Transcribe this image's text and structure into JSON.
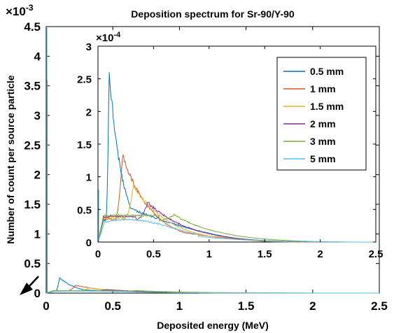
{
  "chart_data": {
    "type": "line",
    "title": "Deposition spectrum for Sr-90/Y-90",
    "xlabel": "Deposited energy (MeV)",
    "ylabel": "Number of count per source particle",
    "xlim": [
      0,
      2.5
    ],
    "ylim": [
      0,
      0.0045
    ],
    "exponent_label": "×10",
    "exponent_power": "-3",
    "xticks": [
      "0",
      "0.5",
      "1",
      "1.5",
      "2",
      "2.5"
    ],
    "yticks": [
      "0",
      "0.5",
      "1",
      "1.5",
      "2",
      "2.5",
      "3",
      "3.5",
      "4",
      "4.5"
    ],
    "grid": false,
    "legend_position": "top-right",
    "series": [
      {
        "name": "0.5 mm",
        "color": "#0072BD",
        "peak_x": 0.1,
        "peak_y": 0.000265,
        "end_x": 1.7
      },
      {
        "name": "1 mm",
        "color": "#D95319",
        "peak_x": 0.22,
        "peak_y": 0.000133,
        "end_x": 1.85
      },
      {
        "name": "1.5 mm",
        "color": "#EDB120",
        "peak_x": 0.32,
        "peak_y": 8.7e-05,
        "end_x": 1.95
      },
      {
        "name": "2 mm",
        "color": "#7E2F8E",
        "peak_x": 0.45,
        "peak_y": 6.1e-05,
        "end_x": 2.05
      },
      {
        "name": "3 mm",
        "color": "#77AC30",
        "peak_x": 0.68,
        "peak_y": 4.3e-05,
        "end_x": 2.25
      },
      {
        "name": "5 mm",
        "color": "#4DBEEE",
        "peak_x": 0.28,
        "peak_y": 3.5e-05,
        "end_x": 2.3
      }
    ],
    "inset": {
      "xlim": [
        0,
        2.5
      ],
      "ylim": [
        0,
        0.0003
      ],
      "exponent_label": "×10",
      "exponent_power": "-4",
      "xticks": [
        "0",
        "0.5",
        "1",
        "1.5",
        "2",
        "2.5"
      ],
      "yticks": [
        "0",
        "0.5",
        "1",
        "1.5",
        "2",
        "2.5",
        "3"
      ]
    },
    "annotation": "arrow"
  }
}
